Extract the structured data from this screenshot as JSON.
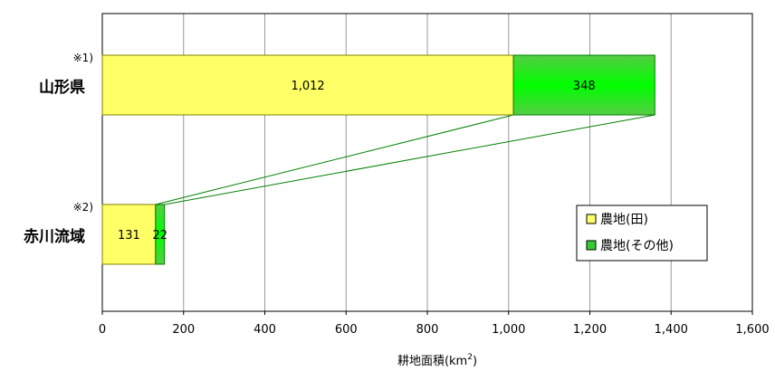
{
  "chart_data": {
    "type": "bar",
    "orientation": "horizontal",
    "stacked": true,
    "categories": [
      "山形県",
      "赤川流域"
    ],
    "category_notes": [
      "※1)",
      "※2)"
    ],
    "series": [
      {
        "name": "農地(田)",
        "values": [
          1012,
          131
        ],
        "labels": [
          "1,012",
          "131"
        ]
      },
      {
        "name": "農地(その他)",
        "values": [
          348,
          22
        ],
        "labels": [
          "348",
          "22"
        ]
      }
    ],
    "xlabel_main": "耕地面積(km",
    "xlabel_sup": "2",
    "xlabel_end": ")",
    "xlim": [
      0,
      1600
    ],
    "xticks": [
      0,
      200,
      400,
      600,
      800,
      1000,
      1200,
      1400,
      1600
    ],
    "xtick_labels": [
      "0",
      "200",
      "400",
      "600",
      "800",
      "1,000",
      "1,200",
      "1,400",
      "1,600"
    ],
    "grid": true,
    "legend_position": "right",
    "colors": {
      "series1": "#ffff66",
      "series1_stroke": "#808000",
      "series2": "#33cc33",
      "series2_highlight": "#00ff00",
      "connector": "#008000",
      "grid": "#999999"
    }
  }
}
